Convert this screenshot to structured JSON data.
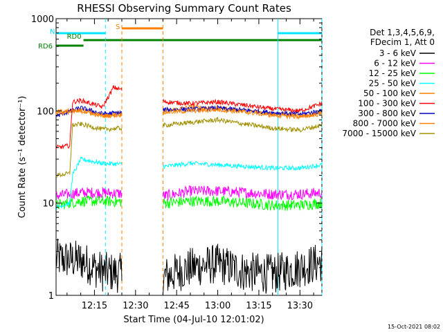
{
  "chart_data": {
    "type": "line",
    "title": "RHESSI Observing Summary Count Rates",
    "xlabel": "Start Time (04-Jul-10 12:01:02)",
    "ylabel": "Count Rate (s⁻¹ detector⁻¹)",
    "yscale": "log",
    "ylim": [
      1,
      1000
    ],
    "xlim": [
      "12:01",
      "13:38"
    ],
    "y_ticks": [
      "1",
      "10",
      "100",
      "1000"
    ],
    "x_ticks": [
      "12:15",
      "12:30",
      "12:45",
      "13:00",
      "13:15",
      "13:30"
    ],
    "footer_timestamp": "15-Oct-2021 08:02",
    "legend_header": [
      "Det 1,3,4,5,6,9,",
      "FDecim 1, Att 0"
    ],
    "legend_placement": "right",
    "flags": [
      {
        "label": "S",
        "color": "#ff8000",
        "segments": [
          [
            "12:25",
            "12:40"
          ]
        ]
      },
      {
        "label": "N",
        "color": "#00e5ff",
        "segments": [
          [
            "12:01",
            "12:19"
          ],
          [
            "13:22",
            "13:38"
          ]
        ]
      },
      {
        "label": "RD0",
        "color": "#008000",
        "segments": [
          [
            "12:11",
            "13:38"
          ]
        ]
      },
      {
        "label": "RD6",
        "color": "#008000",
        "segments": [
          [
            "12:01",
            "12:11"
          ]
        ]
      }
    ],
    "vertical_markers": [
      {
        "x": "12:19",
        "color": "#00e5ff",
        "style": "dashed"
      },
      {
        "x": "12:25",
        "color": "#ff8000",
        "style": "dashed"
      },
      {
        "x": "12:40",
        "color": "#ff8000",
        "style": "dashed"
      },
      {
        "x": "13:22",
        "color": "#00e5ff",
        "style": "solid"
      },
      {
        "x": "13:38",
        "color": "#00e5ff",
        "style": "dashed"
      }
    ],
    "series": [
      {
        "name": "3 - 6 keV",
        "color": "#000000",
        "points": [
          [
            "12:01",
            2.5
          ],
          [
            "12:10",
            2.4
          ],
          [
            "12:18",
            1.8
          ],
          [
            "12:41",
            1.6
          ],
          [
            "12:50",
            2.0
          ],
          [
            "13:00",
            2.2
          ],
          [
            "13:10",
            1.8
          ],
          [
            "13:20",
            1.7
          ],
          [
            "13:30",
            2.0
          ],
          [
            "13:38",
            2.3
          ]
        ]
      },
      {
        "name": "6 - 12 keV",
        "color": "#ff00ff",
        "points": [
          [
            "12:01",
            12
          ],
          [
            "12:10",
            13
          ],
          [
            "12:18",
            13
          ],
          [
            "12:41",
            12
          ],
          [
            "12:50",
            13.5
          ],
          [
            "13:00",
            13.5
          ],
          [
            "13:10",
            13
          ],
          [
            "13:20",
            12.5
          ],
          [
            "13:30",
            12.5
          ],
          [
            "13:38",
            13
          ]
        ]
      },
      {
        "name": "12 - 25 keV",
        "color": "#00ff00",
        "points": [
          [
            "12:01",
            9.5
          ],
          [
            "12:10",
            10.5
          ],
          [
            "12:18",
            10.5
          ],
          [
            "12:41",
            10
          ],
          [
            "12:50",
            10.5
          ],
          [
            "13:00",
            10.5
          ],
          [
            "13:10",
            10
          ],
          [
            "13:20",
            9.5
          ],
          [
            "13:30",
            9.5
          ],
          [
            "13:38",
            10
          ]
        ]
      },
      {
        "name": "25 - 50 keV",
        "color": "#00ffff",
        "points": [
          [
            "12:01",
            9
          ],
          [
            "12:06",
            10
          ],
          [
            "12:07",
            20
          ],
          [
            "12:10",
            30
          ],
          [
            "12:18",
            27
          ],
          [
            "12:41",
            25
          ],
          [
            "12:50",
            27
          ],
          [
            "13:00",
            26
          ],
          [
            "13:10",
            25
          ],
          [
            "13:20",
            24
          ],
          [
            "13:30",
            24
          ],
          [
            "13:38",
            26
          ]
        ]
      },
      {
        "name": "50 - 100 keV",
        "color": "#ff8000",
        "points": [
          [
            "12:01",
            97
          ],
          [
            "12:10",
            102
          ],
          [
            "12:18",
            90
          ],
          [
            "12:41",
            100
          ],
          [
            "12:50",
            110
          ],
          [
            "13:00",
            108
          ],
          [
            "13:10",
            100
          ],
          [
            "13:20",
            94
          ],
          [
            "13:30",
            88
          ],
          [
            "13:38",
            96
          ]
        ]
      },
      {
        "name": "100 - 300 keV",
        "color": "#ff0000",
        "points": [
          [
            "12:01",
            40
          ],
          [
            "12:06",
            42
          ],
          [
            "12:07",
            125
          ],
          [
            "12:10",
            130
          ],
          [
            "12:18",
            110
          ],
          [
            "12:22",
            180
          ],
          [
            "12:41",
            125
          ],
          [
            "12:50",
            120
          ],
          [
            "13:00",
            125
          ],
          [
            "13:10",
            115
          ],
          [
            "13:20",
            105
          ],
          [
            "13:30",
            100
          ],
          [
            "13:38",
            120
          ]
        ]
      },
      {
        "name": "300 - 800 keV",
        "color": "#0000cc",
        "points": [
          [
            "12:01",
            88
          ],
          [
            "12:10",
            108
          ],
          [
            "12:18",
            93
          ],
          [
            "12:41",
            103
          ],
          [
            "12:50",
            104
          ],
          [
            "13:00",
            107
          ],
          [
            "13:10",
            102
          ],
          [
            "13:20",
            96
          ],
          [
            "13:30",
            92
          ],
          [
            "13:38",
            100
          ]
        ]
      },
      {
        "name": "800 - 7000 keV",
        "color": "#ff8000",
        "points": [
          [
            "12:01",
            95
          ],
          [
            "12:10",
            100
          ],
          [
            "12:18",
            88
          ],
          [
            "12:41",
            97
          ],
          [
            "12:50",
            100
          ],
          [
            "13:00",
            103
          ],
          [
            "13:10",
            97
          ],
          [
            "13:20",
            90
          ],
          [
            "13:30",
            86
          ],
          [
            "13:38",
            93
          ]
        ]
      },
      {
        "name": "7000 - 15000 keV",
        "color": "#a09000",
        "points": [
          [
            "12:01",
            20
          ],
          [
            "12:06",
            21
          ],
          [
            "12:07",
            70
          ],
          [
            "12:10",
            72
          ],
          [
            "12:18",
            63
          ],
          [
            "12:41",
            70
          ],
          [
            "12:50",
            75
          ],
          [
            "13:00",
            80
          ],
          [
            "13:10",
            72
          ],
          [
            "13:20",
            65
          ],
          [
            "13:30",
            62
          ],
          [
            "13:38",
            70
          ]
        ]
      }
    ]
  }
}
